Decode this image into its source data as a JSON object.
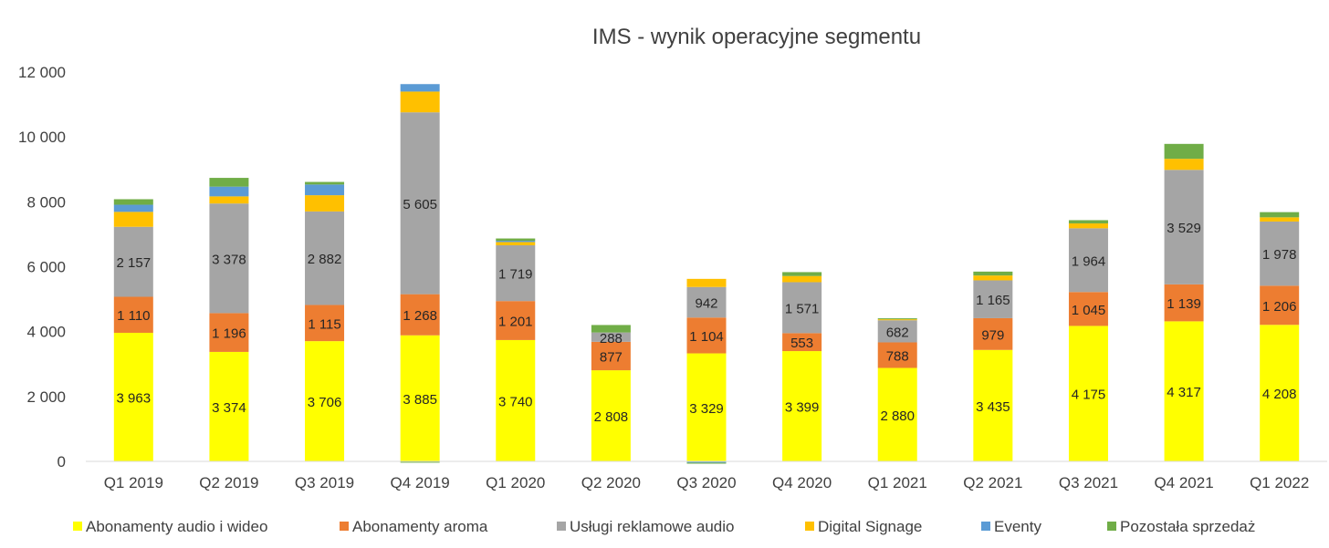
{
  "chart_data": {
    "type": "bar",
    "stacked": true,
    "title": "IMS - wynik operacyjne segmentu",
    "xlabel": "",
    "ylabel": "",
    "ylim": [
      0,
      12000
    ],
    "yticks": [
      "0",
      "2 000",
      "4 000",
      "6 000",
      "8 000",
      "10 000",
      "12 000"
    ],
    "ytick_values": [
      0,
      2000,
      4000,
      6000,
      8000,
      10000,
      12000
    ],
    "grid": false,
    "legend_position": "bottom",
    "categories": [
      "Q1 2019",
      "Q2 2019",
      "Q3 2019",
      "Q4 2019",
      "Q1 2020",
      "Q2 2020",
      "Q3 2020",
      "Q4 2020",
      "Q1 2021",
      "Q2 2021",
      "Q3 2021",
      "Q4 2021",
      "Q1 2022"
    ],
    "series": [
      {
        "name": "Abonamenty audio i wideo",
        "color": "#ffff00",
        "values": [
          3963,
          3374,
          3706,
          3885,
          3740,
          2808,
          3329,
          3399,
          2880,
          3435,
          4175,
          4317,
          4208
        ],
        "labels": [
          "3 963",
          "3 374",
          "3 706",
          "3 885",
          "3 740",
          "2 808",
          "3 329",
          "3 399",
          "2 880",
          "3 435",
          "4 175",
          "4 317",
          "4 208"
        ]
      },
      {
        "name": "Abonamenty aroma",
        "color": "#ed7d31",
        "values": [
          1110,
          1196,
          1115,
          1268,
          1201,
          877,
          1104,
          553,
          788,
          979,
          1045,
          1139,
          1206
        ],
        "labels": [
          "1 110",
          "1 196",
          "1 115",
          "1 268",
          "1 201",
          "877",
          "1 104",
          "553",
          "788",
          "979",
          "1 045",
          "1 139",
          "1 206"
        ]
      },
      {
        "name": "Usługi reklamowe audio",
        "color": "#a5a5a5",
        "values": [
          2157,
          3378,
          2882,
          5605,
          1719,
          288,
          942,
          1571,
          682,
          1165,
          1964,
          3529,
          1978
        ],
        "labels": [
          "2 157",
          "3 378",
          "2 882",
          "5 605",
          "1 719",
          "288",
          "942",
          "1 571",
          "682",
          "1 165",
          "1 964",
          "3 529",
          "1 978"
        ]
      },
      {
        "name": "Digital Signage",
        "color": "#ffc000",
        "values": [
          460,
          220,
          500,
          640,
          100,
          0,
          250,
          190,
          30,
          150,
          150,
          340,
          130
        ],
        "labels": null
      },
      {
        "name": "Eventy",
        "color": "#5b9bd5",
        "values": [
          220,
          300,
          330,
          230,
          40,
          0,
          -40,
          0,
          0,
          0,
          0,
          0,
          0
        ],
        "labels": null
      },
      {
        "name": "Pozostała sprzedaż",
        "color": "#70ad47",
        "values": [
          170,
          270,
          80,
          -40,
          70,
          230,
          -30,
          120,
          30,
          120,
          100,
          460,
          160
        ],
        "labels": null
      }
    ]
  }
}
